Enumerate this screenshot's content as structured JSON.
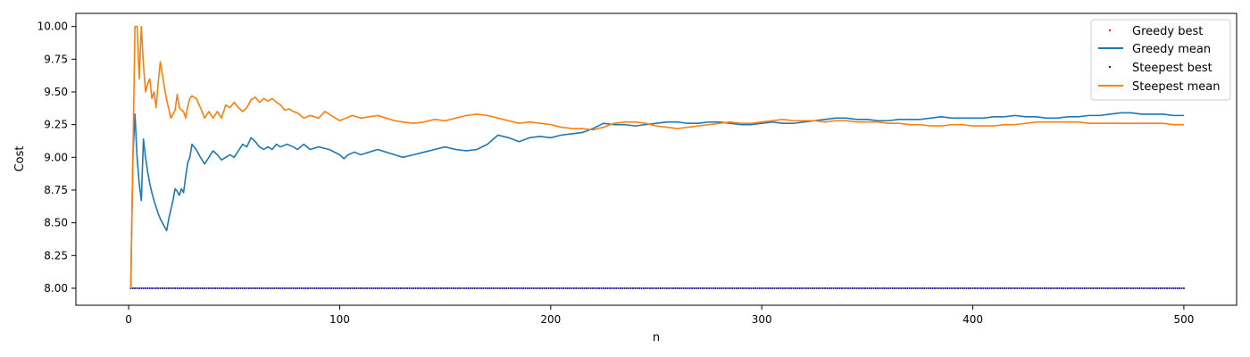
{
  "chart_data": {
    "type": "line",
    "xlabel": "n",
    "ylabel": "Cost",
    "xlim": [
      -25,
      525
    ],
    "ylim": [
      7.87,
      10.1
    ],
    "xticks": [
      0,
      100,
      200,
      300,
      400,
      500
    ],
    "yticks": [
      8.0,
      8.25,
      8.5,
      8.75,
      9.0,
      9.25,
      9.5,
      9.75,
      10.0
    ],
    "ytick_labels": [
      "8.00",
      "8.25",
      "8.50",
      "8.75",
      "9.00",
      "9.25",
      "9.50",
      "9.75",
      "10.00"
    ],
    "xtick_labels": [
      "0",
      "100",
      "200",
      "300",
      "400",
      "500"
    ],
    "legend_position": "top-right",
    "grid": false,
    "series": [
      {
        "name": "Greedy best",
        "style": "points",
        "color": "#d62728",
        "x_range": [
          1,
          500
        ],
        "constant_value": 8.0
      },
      {
        "name": "Greedy mean",
        "style": "line",
        "color": "#1f77b4",
        "points": [
          [
            1,
            8.0
          ],
          [
            2,
            9.0
          ],
          [
            3,
            9.33
          ],
          [
            4,
            9.0
          ],
          [
            5,
            8.8
          ],
          [
            6,
            8.67
          ],
          [
            7,
            9.14
          ],
          [
            8,
            9.0
          ],
          [
            9,
            8.89
          ],
          [
            10,
            8.8
          ],
          [
            11,
            8.73
          ],
          [
            12,
            8.67
          ],
          [
            13,
            8.62
          ],
          [
            14,
            8.57
          ],
          [
            15,
            8.53
          ],
          [
            16,
            8.5
          ],
          [
            17,
            8.47
          ],
          [
            18,
            8.44
          ],
          [
            19,
            8.53
          ],
          [
            20,
            8.6
          ],
          [
            21,
            8.67
          ],
          [
            22,
            8.76
          ],
          [
            23,
            8.74
          ],
          [
            24,
            8.71
          ],
          [
            25,
            8.76
          ],
          [
            26,
            8.73
          ],
          [
            27,
            8.85
          ],
          [
            28,
            8.96
          ],
          [
            29,
            9.0
          ],
          [
            30,
            9.1
          ],
          [
            32,
            9.06
          ],
          [
            34,
            9.0
          ],
          [
            36,
            8.95
          ],
          [
            38,
            9.0
          ],
          [
            40,
            9.05
          ],
          [
            42,
            9.02
          ],
          [
            44,
            8.98
          ],
          [
            46,
            9.0
          ],
          [
            48,
            9.02
          ],
          [
            50,
            9.0
          ],
          [
            52,
            9.05
          ],
          [
            54,
            9.1
          ],
          [
            56,
            9.08
          ],
          [
            58,
            9.15
          ],
          [
            60,
            9.12
          ],
          [
            62,
            9.08
          ],
          [
            64,
            9.06
          ],
          [
            66,
            9.08
          ],
          [
            68,
            9.06
          ],
          [
            70,
            9.1
          ],
          [
            72,
            9.08
          ],
          [
            75,
            9.1
          ],
          [
            78,
            9.08
          ],
          [
            80,
            9.06
          ],
          [
            83,
            9.1
          ],
          [
            86,
            9.06
          ],
          [
            90,
            9.08
          ],
          [
            95,
            9.06
          ],
          [
            100,
            9.02
          ],
          [
            102,
            8.99
          ],
          [
            104,
            9.02
          ],
          [
            107,
            9.04
          ],
          [
            110,
            9.02
          ],
          [
            114,
            9.04
          ],
          [
            118,
            9.06
          ],
          [
            122,
            9.04
          ],
          [
            126,
            9.02
          ],
          [
            130,
            9.0
          ],
          [
            135,
            9.02
          ],
          [
            140,
            9.04
          ],
          [
            145,
            9.06
          ],
          [
            150,
            9.08
          ],
          [
            155,
            9.06
          ],
          [
            160,
            9.05
          ],
          [
            165,
            9.06
          ],
          [
            170,
            9.1
          ],
          [
            175,
            9.17
          ],
          [
            180,
            9.15
          ],
          [
            185,
            9.12
          ],
          [
            190,
            9.15
          ],
          [
            195,
            9.16
          ],
          [
            200,
            9.15
          ],
          [
            205,
            9.17
          ],
          [
            210,
            9.18
          ],
          [
            215,
            9.19
          ],
          [
            220,
            9.22
          ],
          [
            225,
            9.26
          ],
          [
            230,
            9.25
          ],
          [
            235,
            9.25
          ],
          [
            240,
            9.24
          ],
          [
            245,
            9.25
          ],
          [
            250,
            9.26
          ],
          [
            255,
            9.27
          ],
          [
            260,
            9.27
          ],
          [
            265,
            9.26
          ],
          [
            270,
            9.26
          ],
          [
            275,
            9.27
          ],
          [
            280,
            9.27
          ],
          [
            285,
            9.26
          ],
          [
            290,
            9.25
          ],
          [
            295,
            9.25
          ],
          [
            300,
            9.26
          ],
          [
            305,
            9.27
          ],
          [
            310,
            9.26
          ],
          [
            315,
            9.26
          ],
          [
            320,
            9.27
          ],
          [
            325,
            9.28
          ],
          [
            330,
            9.29
          ],
          [
            335,
            9.3
          ],
          [
            340,
            9.3
          ],
          [
            345,
            9.29
          ],
          [
            350,
            9.29
          ],
          [
            355,
            9.28
          ],
          [
            360,
            9.28
          ],
          [
            365,
            9.29
          ],
          [
            370,
            9.29
          ],
          [
            375,
            9.29
          ],
          [
            380,
            9.3
          ],
          [
            385,
            9.31
          ],
          [
            390,
            9.3
          ],
          [
            395,
            9.3
          ],
          [
            400,
            9.3
          ],
          [
            405,
            9.3
          ],
          [
            410,
            9.31
          ],
          [
            415,
            9.31
          ],
          [
            420,
            9.32
          ],
          [
            425,
            9.31
          ],
          [
            430,
            9.31
          ],
          [
            435,
            9.3
          ],
          [
            440,
            9.3
          ],
          [
            445,
            9.31
          ],
          [
            450,
            9.31
          ],
          [
            455,
            9.32
          ],
          [
            460,
            9.32
          ],
          [
            465,
            9.33
          ],
          [
            470,
            9.34
          ],
          [
            475,
            9.34
          ],
          [
            480,
            9.33
          ],
          [
            485,
            9.33
          ],
          [
            490,
            9.33
          ],
          [
            495,
            9.32
          ],
          [
            500,
            9.32
          ]
        ]
      },
      {
        "name": "Steepest best",
        "style": "points",
        "color": "#1a1aa6",
        "x_range": [
          1,
          500
        ],
        "constant_value": 8.0
      },
      {
        "name": "Steepest mean",
        "style": "line",
        "color": "#ff7f0e",
        "points": [
          [
            1,
            8.0
          ],
          [
            2,
            9.0
          ],
          [
            3,
            10.0
          ],
          [
            4,
            10.0
          ],
          [
            5,
            9.6
          ],
          [
            6,
            10.0
          ],
          [
            7,
            9.71
          ],
          [
            8,
            9.5
          ],
          [
            9,
            9.56
          ],
          [
            10,
            9.6
          ],
          [
            11,
            9.45
          ],
          [
            12,
            9.5
          ],
          [
            13,
            9.38
          ],
          [
            14,
            9.57
          ],
          [
            15,
            9.73
          ],
          [
            16,
            9.63
          ],
          [
            17,
            9.53
          ],
          [
            18,
            9.44
          ],
          [
            19,
            9.37
          ],
          [
            20,
            9.3
          ],
          [
            21,
            9.33
          ],
          [
            22,
            9.36
          ],
          [
            23,
            9.48
          ],
          [
            24,
            9.38
          ],
          [
            25,
            9.36
          ],
          [
            26,
            9.35
          ],
          [
            27,
            9.3
          ],
          [
            28,
            9.39
          ],
          [
            29,
            9.45
          ],
          [
            30,
            9.47
          ],
          [
            32,
            9.45
          ],
          [
            34,
            9.38
          ],
          [
            36,
            9.3
          ],
          [
            38,
            9.35
          ],
          [
            40,
            9.3
          ],
          [
            42,
            9.35
          ],
          [
            44,
            9.3
          ],
          [
            46,
            9.4
          ],
          [
            48,
            9.38
          ],
          [
            50,
            9.42
          ],
          [
            52,
            9.38
          ],
          [
            54,
            9.35
          ],
          [
            56,
            9.38
          ],
          [
            58,
            9.44
          ],
          [
            60,
            9.46
          ],
          [
            62,
            9.42
          ],
          [
            64,
            9.45
          ],
          [
            66,
            9.43
          ],
          [
            68,
            9.45
          ],
          [
            70,
            9.42
          ],
          [
            72,
            9.4
          ],
          [
            74,
            9.36
          ],
          [
            76,
            9.37
          ],
          [
            78,
            9.35
          ],
          [
            80,
            9.34
          ],
          [
            83,
            9.3
          ],
          [
            86,
            9.32
          ],
          [
            90,
            9.3
          ],
          [
            93,
            9.35
          ],
          [
            96,
            9.32
          ],
          [
            100,
            9.28
          ],
          [
            103,
            9.3
          ],
          [
            106,
            9.32
          ],
          [
            110,
            9.3
          ],
          [
            114,
            9.31
          ],
          [
            118,
            9.32
          ],
          [
            122,
            9.3
          ],
          [
            126,
            9.28
          ],
          [
            130,
            9.27
          ],
          [
            135,
            9.26
          ],
          [
            140,
            9.27
          ],
          [
            145,
            9.29
          ],
          [
            150,
            9.28
          ],
          [
            155,
            9.3
          ],
          [
            160,
            9.32
          ],
          [
            165,
            9.33
          ],
          [
            170,
            9.32
          ],
          [
            175,
            9.3
          ],
          [
            180,
            9.28
          ],
          [
            185,
            9.26
          ],
          [
            190,
            9.27
          ],
          [
            195,
            9.26
          ],
          [
            200,
            9.25
          ],
          [
            205,
            9.23
          ],
          [
            210,
            9.22
          ],
          [
            215,
            9.22
          ],
          [
            220,
            9.21
          ],
          [
            225,
            9.23
          ],
          [
            230,
            9.26
          ],
          [
            235,
            9.27
          ],
          [
            240,
            9.27
          ],
          [
            245,
            9.26
          ],
          [
            250,
            9.24
          ],
          [
            255,
            9.23
          ],
          [
            260,
            9.22
          ],
          [
            265,
            9.23
          ],
          [
            270,
            9.24
          ],
          [
            275,
            9.25
          ],
          [
            280,
            9.26
          ],
          [
            285,
            9.27
          ],
          [
            290,
            9.26
          ],
          [
            295,
            9.26
          ],
          [
            300,
            9.27
          ],
          [
            305,
            9.28
          ],
          [
            310,
            9.29
          ],
          [
            315,
            9.28
          ],
          [
            320,
            9.28
          ],
          [
            325,
            9.28
          ],
          [
            330,
            9.27
          ],
          [
            335,
            9.28
          ],
          [
            340,
            9.28
          ],
          [
            345,
            9.27
          ],
          [
            350,
            9.27
          ],
          [
            355,
            9.27
          ],
          [
            360,
            9.26
          ],
          [
            365,
            9.26
          ],
          [
            370,
            9.25
          ],
          [
            375,
            9.25
          ],
          [
            380,
            9.24
          ],
          [
            385,
            9.24
          ],
          [
            390,
            9.25
          ],
          [
            395,
            9.25
          ],
          [
            400,
            9.24
          ],
          [
            405,
            9.24
          ],
          [
            410,
            9.24
          ],
          [
            415,
            9.25
          ],
          [
            420,
            9.25
          ],
          [
            425,
            9.26
          ],
          [
            430,
            9.27
          ],
          [
            435,
            9.27
          ],
          [
            440,
            9.27
          ],
          [
            445,
            9.27
          ],
          [
            450,
            9.27
          ],
          [
            455,
            9.26
          ],
          [
            460,
            9.26
          ],
          [
            465,
            9.26
          ],
          [
            470,
            9.26
          ],
          [
            475,
            9.26
          ],
          [
            480,
            9.26
          ],
          [
            485,
            9.26
          ],
          [
            490,
            9.26
          ],
          [
            495,
            9.25
          ],
          [
            500,
            9.25
          ]
        ]
      }
    ]
  }
}
